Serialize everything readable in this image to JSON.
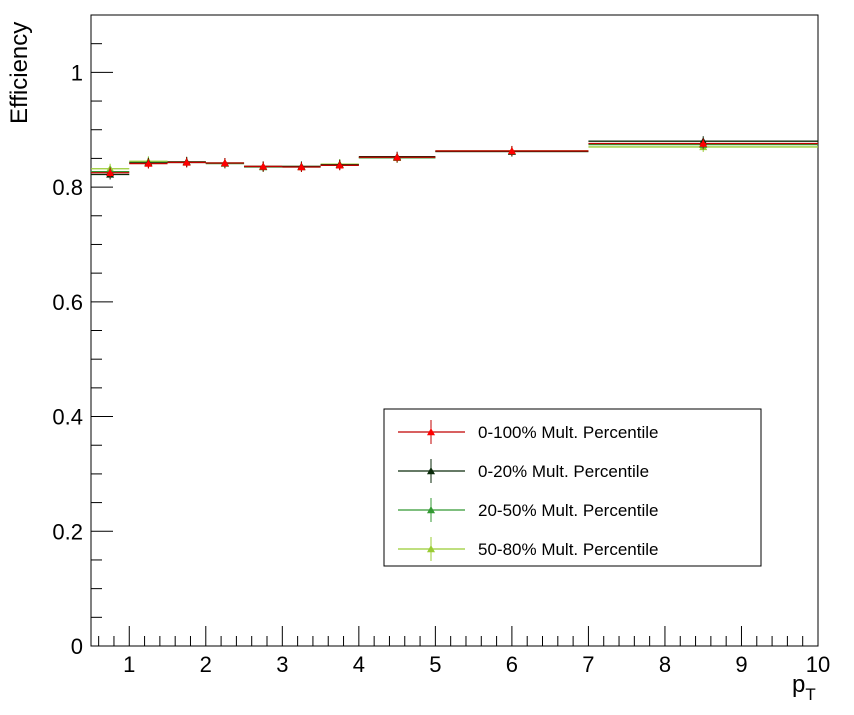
{
  "chart_data": {
    "type": "scatter",
    "xlabel": "p",
    "xlabel_sub": "T",
    "ylabel": "Efficiency",
    "xlim": [
      0.5,
      10
    ],
    "ylim": [
      0,
      1.1
    ],
    "x_ticks": [
      1,
      2,
      3,
      4,
      5,
      6,
      7,
      8,
      9,
      10
    ],
    "y_ticks": [
      0,
      0.2,
      0.4,
      0.6,
      0.8,
      1
    ],
    "y_tick_labels": [
      "0",
      "0.2",
      "0.4",
      "0.6",
      "0.8",
      "1"
    ],
    "bins": [
      [
        0.5,
        1.0
      ],
      [
        1.0,
        1.5
      ],
      [
        1.5,
        2.0
      ],
      [
        2.0,
        2.5
      ],
      [
        2.5,
        3.0
      ],
      [
        3.0,
        3.5
      ],
      [
        3.5,
        4.0
      ],
      [
        4.0,
        5.0
      ],
      [
        5.0,
        7.0
      ],
      [
        7.0,
        10.0
      ]
    ],
    "legend_position": "bottom-right",
    "series": [
      {
        "name": "0-100% Mult. Percentile",
        "color": "#c00000",
        "marker_color": "#ff0000",
        "values": [
          0.825,
          0.841,
          0.843,
          0.842,
          0.836,
          0.835,
          0.838,
          0.852,
          0.863,
          0.876
        ]
      },
      {
        "name": "0-20% Mult. Percentile",
        "color": "#0a2a0a",
        "marker_color": "#0a2a0a",
        "values": [
          0.822,
          0.842,
          0.844,
          0.842,
          0.836,
          0.836,
          0.839,
          0.853,
          0.862,
          0.88
        ]
      },
      {
        "name": "20-50% Mult. Percentile",
        "color": "#339933",
        "marker_color": "#339933",
        "values": [
          0.827,
          0.843,
          0.843,
          0.841,
          0.835,
          0.835,
          0.839,
          0.851,
          0.862,
          0.874
        ]
      },
      {
        "name": "50-80% Mult. Percentile",
        "color": "#99cc33",
        "marker_color": "#99cc33",
        "values": [
          0.832,
          0.845,
          0.844,
          0.842,
          0.836,
          0.836,
          0.84,
          0.851,
          0.863,
          0.87
        ]
      }
    ]
  }
}
